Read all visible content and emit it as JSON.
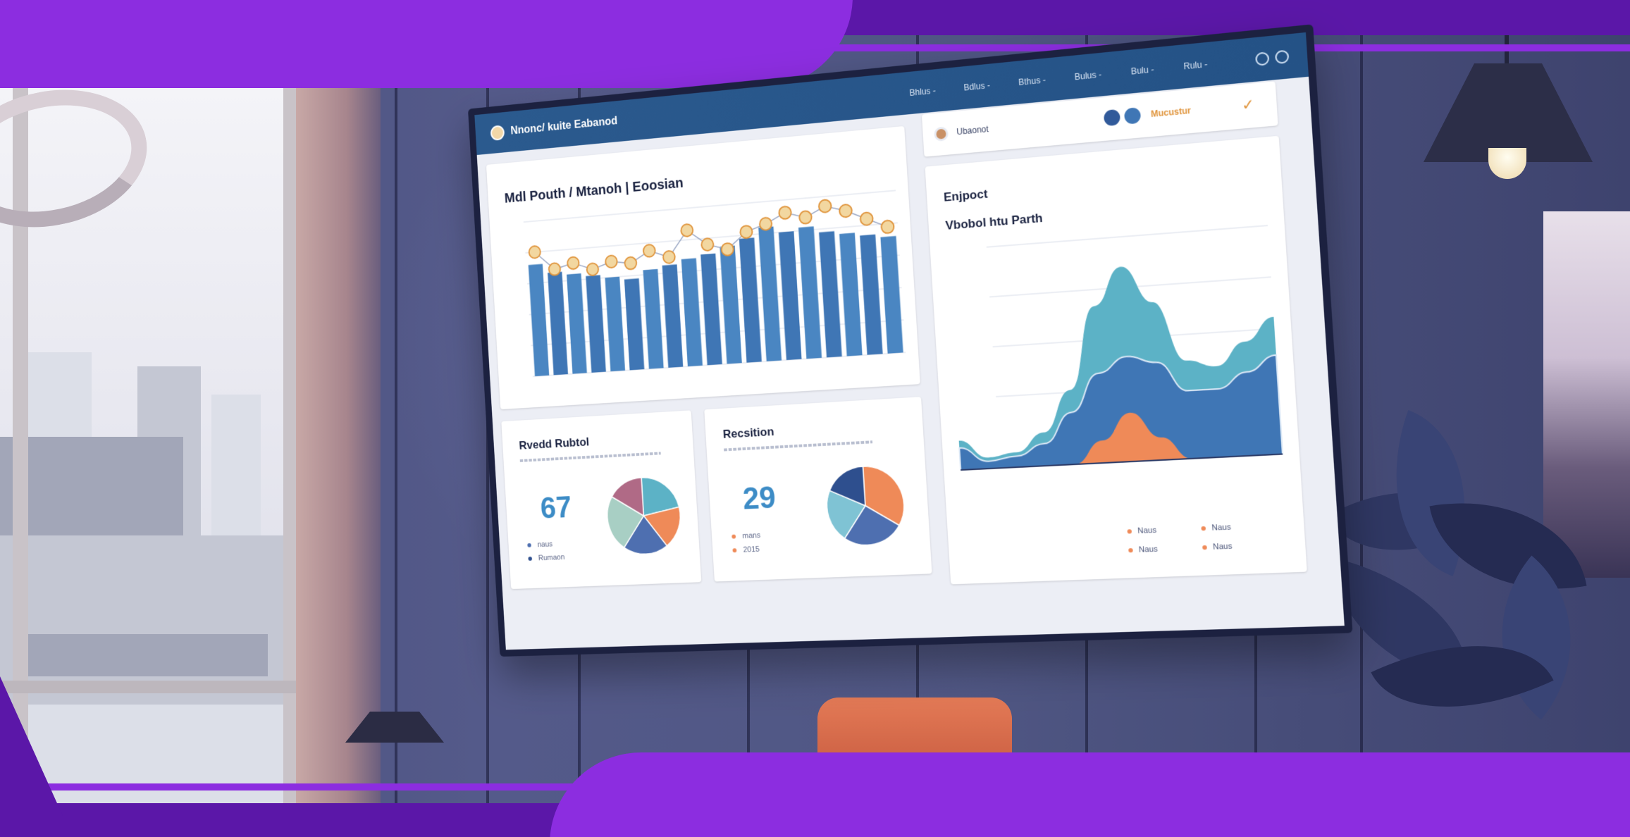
{
  "header": {
    "brand": "Nnonc/ kuite Eabanod",
    "nav": [
      "Bhlus -",
      "Bdlus -",
      "Bthus -",
      "Bulus -",
      "Bulu -",
      "Rulu -"
    ]
  },
  "bar_panel": {
    "title": "Mdl Pouth / Mtanoh | Eoosian"
  },
  "stat_left": {
    "title": "Rvedd Rubtol",
    "value": "67",
    "legend": [
      "naus",
      "Rumaon"
    ]
  },
  "stat_right": {
    "title": "Recsition",
    "value": "29",
    "legend": [
      "mans",
      "2015"
    ]
  },
  "right_header": {
    "name": "Ubaonot",
    "badge": "Mucustur"
  },
  "area_panel": {
    "title": "Enjpoct",
    "subtitle": "Vbobol htu Parth",
    "legend": [
      "Naus",
      "Naus",
      "Naus",
      "Naus"
    ]
  },
  "colors": {
    "purple_dark": "#5b17a8",
    "purple_light": "#8c2de0",
    "header_blue": "#2b5a8e",
    "bar_blue": "#3f76b5",
    "teal": "#5cb2c6",
    "orange": "#ef8a58",
    "accent_gold": "#e0953d"
  },
  "icons": {
    "brand_logo": "logo-icon",
    "nav_icons": [
      "circle-icon",
      "circle-icon"
    ],
    "check": "check-icon"
  },
  "chart_data": [
    {
      "type": "bar",
      "title": "Mdl Pouth / Mtanoh | Eoosian",
      "values": [
        72,
        66,
        64,
        62,
        60,
        58,
        63,
        65,
        68,
        70,
        74,
        78,
        84,
        80,
        82,
        78,
        76,
        74,
        72
      ],
      "line": [
        80,
        68,
        71,
        66,
        70,
        68,
        75,
        70,
        86,
        76,
        72,
        82,
        86,
        92,
        88,
        94,
        90,
        84,
        78
      ],
      "ylim": [
        0,
        100
      ],
      "grid": true
    },
    {
      "type": "pie",
      "values": [
        22,
        18,
        20,
        24,
        16
      ],
      "colors": [
        "#5cb2c6",
        "#ef8a58",
        "#4e6fb0",
        "#a8cfc4",
        "#b06a86"
      ]
    },
    {
      "type": "pie",
      "values": [
        34,
        26,
        22,
        18
      ],
      "colors": [
        "#ef8a58",
        "#4e6fb0",
        "#7fc3d4",
        "#2e4f8e"
      ]
    },
    {
      "type": "area",
      "title": "Vbobol htu Parth",
      "series": [
        {
          "values": [
            8,
            3,
            4,
            9,
            20,
            42,
            52,
            42,
            26,
            24,
            30,
            36
          ]
        },
        {
          "values": [
            6,
            2,
            3,
            6,
            14,
            24,
            28,
            26,
            18,
            18,
            22,
            26
          ]
        },
        {
          "values": [
            0,
            0,
            0,
            0,
            0,
            6,
            13,
            6,
            0,
            0,
            0,
            0
          ]
        }
      ],
      "ylim": [
        0,
        60
      ],
      "grid": true
    }
  ]
}
